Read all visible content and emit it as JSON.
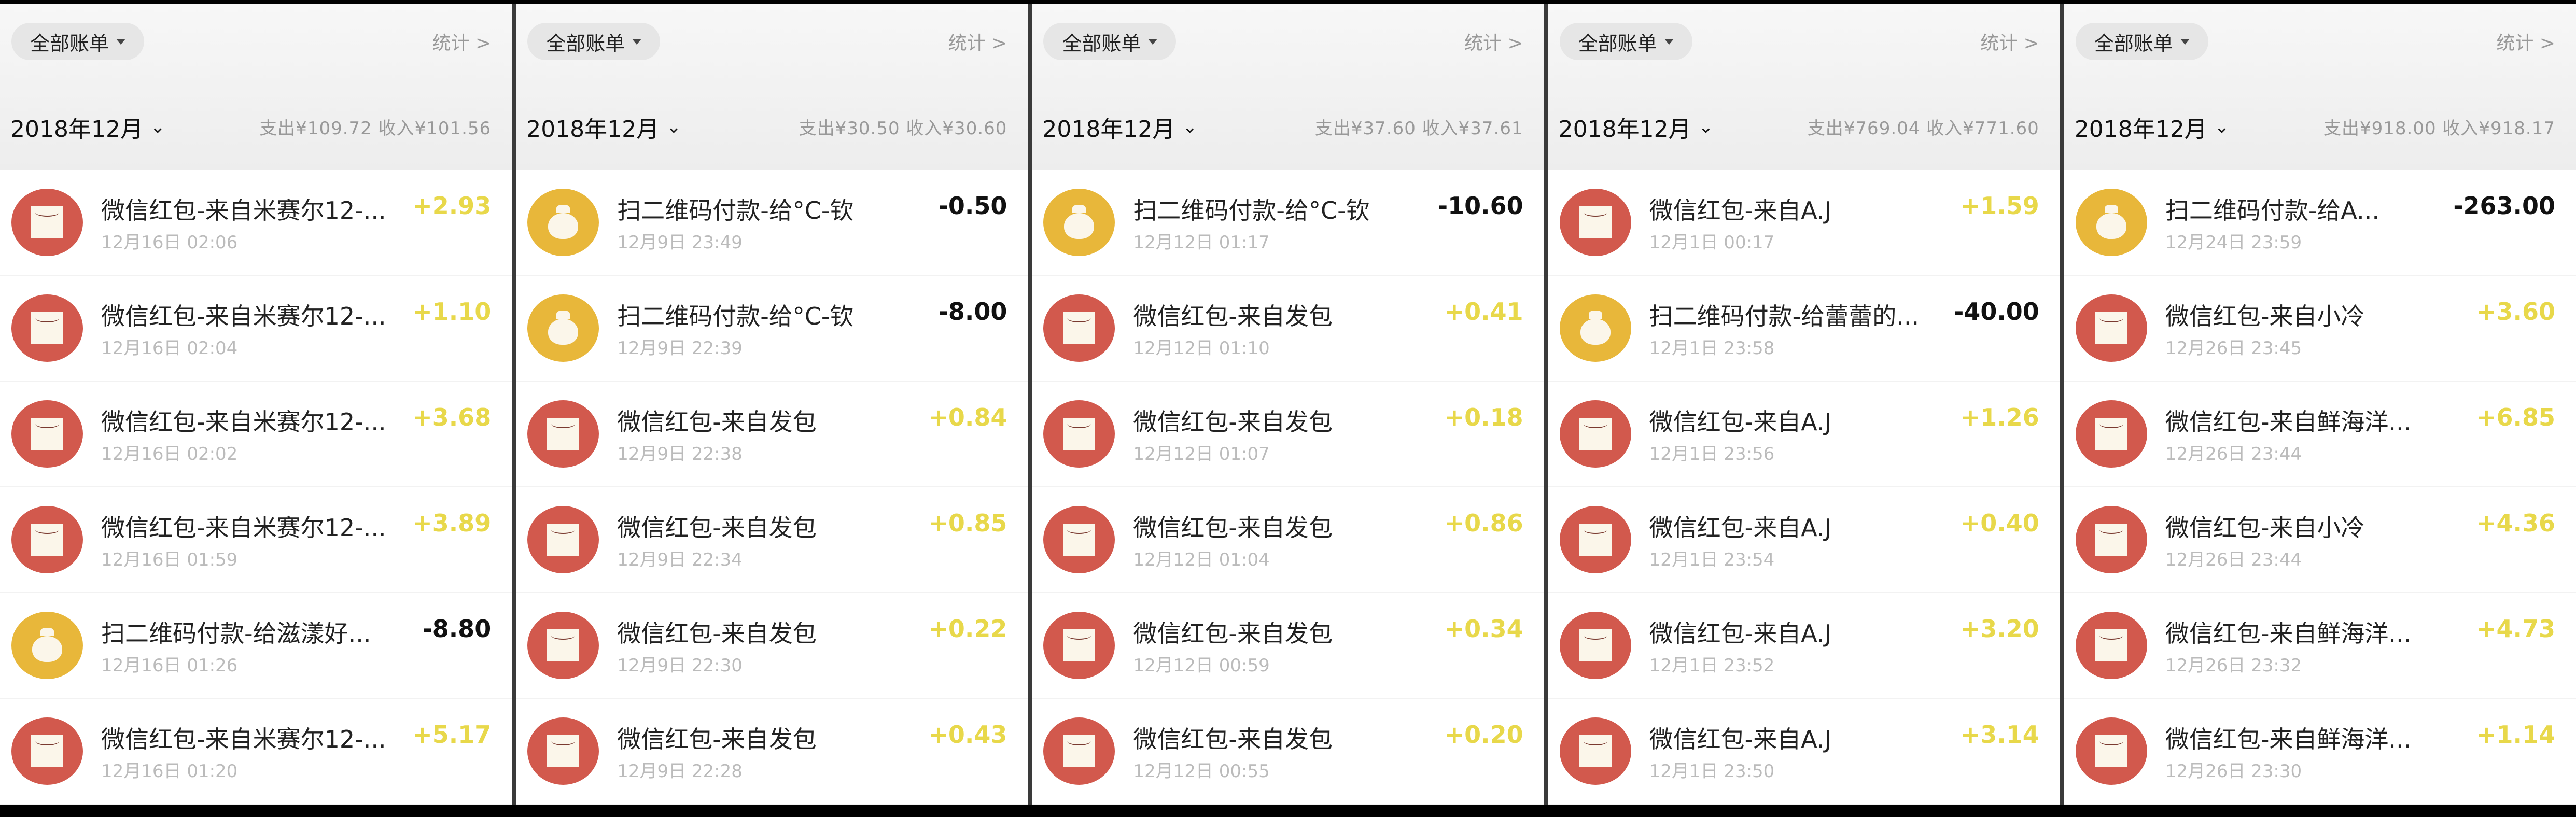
{
  "colors": {
    "income": "#e8d84a",
    "expense": "#111111",
    "red_packet": "#d2594d",
    "qr_payment": "#e8b73a"
  },
  "panels": [
    {
      "filter": "全部账单",
      "stats": "统计 >",
      "month": "2018年12月",
      "summary": "支出¥109.72  收入¥101.56",
      "items": [
        {
          "icon": "red-packet-icon",
          "title": "微信红包-来自米赛尔12-...",
          "date": "12月16日 02:06",
          "amount": "+2.93",
          "type": "in"
        },
        {
          "icon": "red-packet-icon",
          "title": "微信红包-来自米赛尔12-...",
          "date": "12月16日 02:04",
          "amount": "+1.10",
          "type": "in"
        },
        {
          "icon": "red-packet-icon",
          "title": "微信红包-来自米赛尔12-...",
          "date": "12月16日 02:02",
          "amount": "+3.68",
          "type": "in"
        },
        {
          "icon": "red-packet-icon",
          "title": "微信红包-来自米赛尔12-...",
          "date": "12月16日 01:59",
          "amount": "+3.89",
          "type": "in"
        },
        {
          "icon": "money-bag-icon",
          "title": "扫二维码付款-给滋漾好...",
          "date": "12月16日 01:26",
          "amount": "-8.80",
          "type": "out"
        },
        {
          "icon": "red-packet-icon",
          "title": "微信红包-来自米赛尔12-...",
          "date": "12月16日 01:20",
          "amount": "+5.17",
          "type": "in"
        }
      ]
    },
    {
      "filter": "全部账单",
      "stats": "统计 >",
      "month": "2018年12月",
      "summary": "支出¥30.50  收入¥30.60",
      "items": [
        {
          "icon": "money-bag-icon",
          "title": "扫二维码付款-给°C-钦",
          "date": "12月9日 23:49",
          "amount": "-0.50",
          "type": "out"
        },
        {
          "icon": "money-bag-icon",
          "title": "扫二维码付款-给°C-钦",
          "date": "12月9日 22:39",
          "amount": "-8.00",
          "type": "out"
        },
        {
          "icon": "red-packet-icon",
          "title": "微信红包-来自发包",
          "date": "12月9日 22:38",
          "amount": "+0.84",
          "type": "in"
        },
        {
          "icon": "red-packet-icon",
          "title": "微信红包-来自发包",
          "date": "12月9日 22:34",
          "amount": "+0.85",
          "type": "in"
        },
        {
          "icon": "red-packet-icon",
          "title": "微信红包-来自发包",
          "date": "12月9日 22:30",
          "amount": "+0.22",
          "type": "in"
        },
        {
          "icon": "red-packet-icon",
          "title": "微信红包-来自发包",
          "date": "12月9日 22:28",
          "amount": "+0.43",
          "type": "in"
        }
      ]
    },
    {
      "filter": "全部账单",
      "stats": "统计 >",
      "month": "2018年12月",
      "summary": "支出¥37.60  收入¥37.61",
      "items": [
        {
          "icon": "money-bag-icon",
          "title": "扫二维码付款-给°C-钦",
          "date": "12月12日 01:17",
          "amount": "-10.60",
          "type": "out"
        },
        {
          "icon": "red-packet-icon",
          "title": "微信红包-来自发包",
          "date": "12月12日 01:10",
          "amount": "+0.41",
          "type": "in"
        },
        {
          "icon": "red-packet-icon",
          "title": "微信红包-来自发包",
          "date": "12月12日 01:07",
          "amount": "+0.18",
          "type": "in"
        },
        {
          "icon": "red-packet-icon",
          "title": "微信红包-来自发包",
          "date": "12月12日 01:04",
          "amount": "+0.86",
          "type": "in"
        },
        {
          "icon": "red-packet-icon",
          "title": "微信红包-来自发包",
          "date": "12月12日 00:59",
          "amount": "+0.34",
          "type": "in"
        },
        {
          "icon": "red-packet-icon",
          "title": "微信红包-来自发包",
          "date": "12月12日 00:55",
          "amount": "+0.20",
          "type": "in"
        }
      ]
    },
    {
      "filter": "全部账单",
      "stats": "统计 >",
      "month": "2018年12月",
      "summary": "支出¥769.04  收入¥771.60",
      "items": [
        {
          "icon": "red-packet-icon",
          "title": "微信红包-来自A.J",
          "date": "12月1日 00:17",
          "amount": "+1.59",
          "type": "in"
        },
        {
          "icon": "money-bag-icon",
          "title": "扫二维码付款-给蕾蕾的...",
          "date": "12月1日 23:58",
          "amount": "-40.00",
          "type": "out"
        },
        {
          "icon": "red-packet-icon",
          "title": "微信红包-来自A.J",
          "date": "12月1日 23:56",
          "amount": "+1.26",
          "type": "in"
        },
        {
          "icon": "red-packet-icon",
          "title": "微信红包-来自A.J",
          "date": "12月1日 23:54",
          "amount": "+0.40",
          "type": "in"
        },
        {
          "icon": "red-packet-icon",
          "title": "微信红包-来自A.J",
          "date": "12月1日 23:52",
          "amount": "+3.20",
          "type": "in"
        },
        {
          "icon": "red-packet-icon",
          "title": "微信红包-来自A.J",
          "date": "12月1日 23:50",
          "amount": "+3.14",
          "type": "in"
        }
      ]
    },
    {
      "filter": "全部账单",
      "stats": "统计 >",
      "month": "2018年12月",
      "summary": "支出¥918.00  收入¥918.17",
      "items": [
        {
          "icon": "money-bag-icon",
          "title": "扫二维码付款-给A...",
          "date": "12月24日 23:59",
          "amount": "-263.00",
          "type": "out"
        },
        {
          "icon": "red-packet-icon",
          "title": "微信红包-来自小冷",
          "date": "12月26日 23:45",
          "amount": "+3.60",
          "type": "in"
        },
        {
          "icon": "red-packet-icon",
          "title": "微信红包-来自鲜海洋...",
          "date": "12月26日 23:44",
          "amount": "+6.85",
          "type": "in"
        },
        {
          "icon": "red-packet-icon",
          "title": "微信红包-来自小冷",
          "date": "12月26日 23:44",
          "amount": "+4.36",
          "type": "in"
        },
        {
          "icon": "red-packet-icon",
          "title": "微信红包-来自鲜海洋...",
          "date": "12月26日 23:32",
          "amount": "+4.73",
          "type": "in"
        },
        {
          "icon": "red-packet-icon",
          "title": "微信红包-来自鲜海洋...",
          "date": "12月26日 23:30",
          "amount": "+1.14",
          "type": "in"
        }
      ]
    }
  ]
}
